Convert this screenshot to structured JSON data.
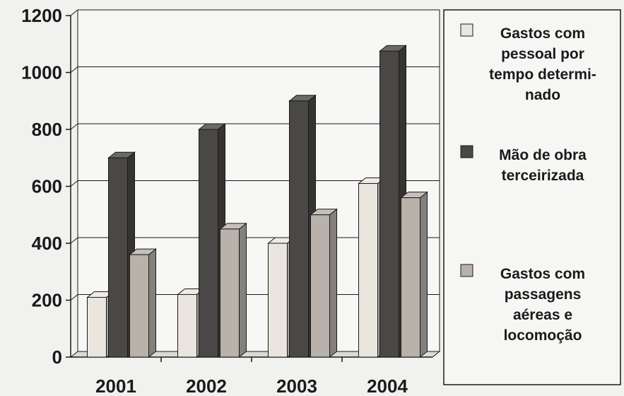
{
  "chart_data": {
    "type": "bar",
    "style": "3d-clustered",
    "categories": [
      "2001",
      "2002",
      "2003",
      "2004"
    ],
    "series": [
      {
        "name": "Gastos com pessoal por tempo determinado",
        "legend_lines": [
          "Gastos com",
          "pessoal por",
          "tempo determi-",
          "nado"
        ],
        "color": "#eae6df",
        "values": [
          210,
          220,
          400,
          610
        ]
      },
      {
        "name": "Mão de obra terceirizada",
        "legend_lines": [
          "Mão de obra",
          "terceirizada"
        ],
        "color": "#4a4846",
        "values": [
          700,
          800,
          900,
          1075
        ]
      },
      {
        "name": "Gastos com passagens aéreas e locomoção",
        "legend_lines": [
          "Gastos com",
          "passagens",
          "aéreas e",
          "locomoção"
        ],
        "color": "#b8b2ab",
        "values": [
          360,
          450,
          500,
          560
        ]
      }
    ],
    "yticks": [
      0,
      200,
      400,
      600,
      800,
      1000,
      1200
    ],
    "ylim": [
      0,
      1200
    ],
    "grid": true,
    "legend_position": "right"
  }
}
